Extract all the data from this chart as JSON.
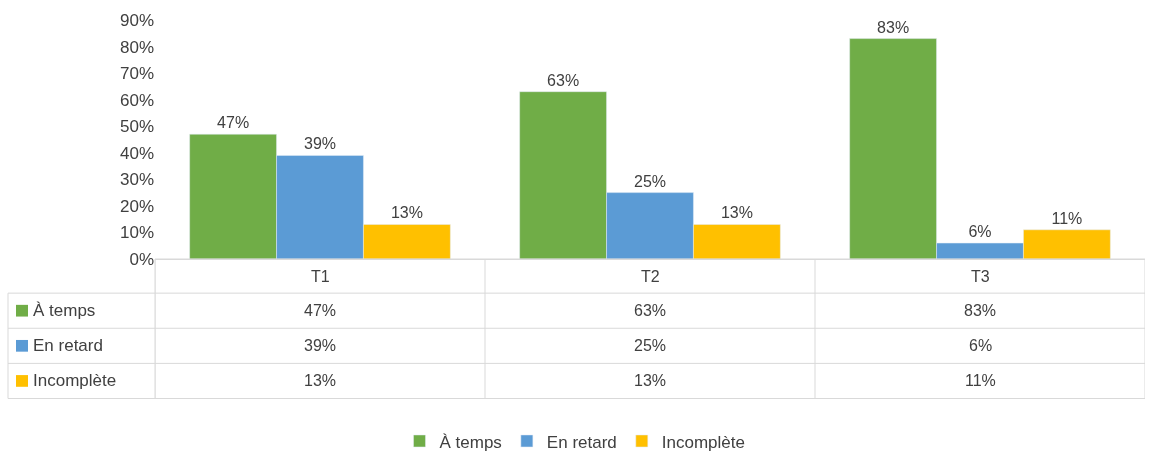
{
  "chart_data": {
    "type": "bar",
    "categories": [
      "T1",
      "T2",
      "T3"
    ],
    "series": [
      {
        "name": "À temps",
        "color": "#70ad47",
        "values": [
          47,
          63,
          83
        ],
        "value_labels": [
          "47%",
          "63%",
          "83%"
        ]
      },
      {
        "name": "En retard",
        "color": "#5b9bd5",
        "values": [
          39,
          25,
          6
        ],
        "value_labels": [
          "39%",
          "25%",
          "6%"
        ]
      },
      {
        "name": "Incomplète",
        "color": "#ffc000",
        "values": [
          13,
          13,
          11
        ],
        "value_labels": [
          "13%",
          "13%",
          "11%"
        ]
      }
    ],
    "ylim": [
      0,
      90
    ],
    "yticks": [
      {
        "value": 0,
        "label": "0%"
      },
      {
        "value": 10,
        "label": "10%"
      },
      {
        "value": 20,
        "label": "20%"
      },
      {
        "value": 30,
        "label": "30%"
      },
      {
        "value": 40,
        "label": "40%"
      },
      {
        "value": 50,
        "label": "50%"
      },
      {
        "value": 60,
        "label": "60%"
      },
      {
        "value": 70,
        "label": "70%"
      },
      {
        "value": 80,
        "label": "80%"
      },
      {
        "value": 90,
        "label": "90%"
      }
    ],
    "legend": "bottom"
  }
}
